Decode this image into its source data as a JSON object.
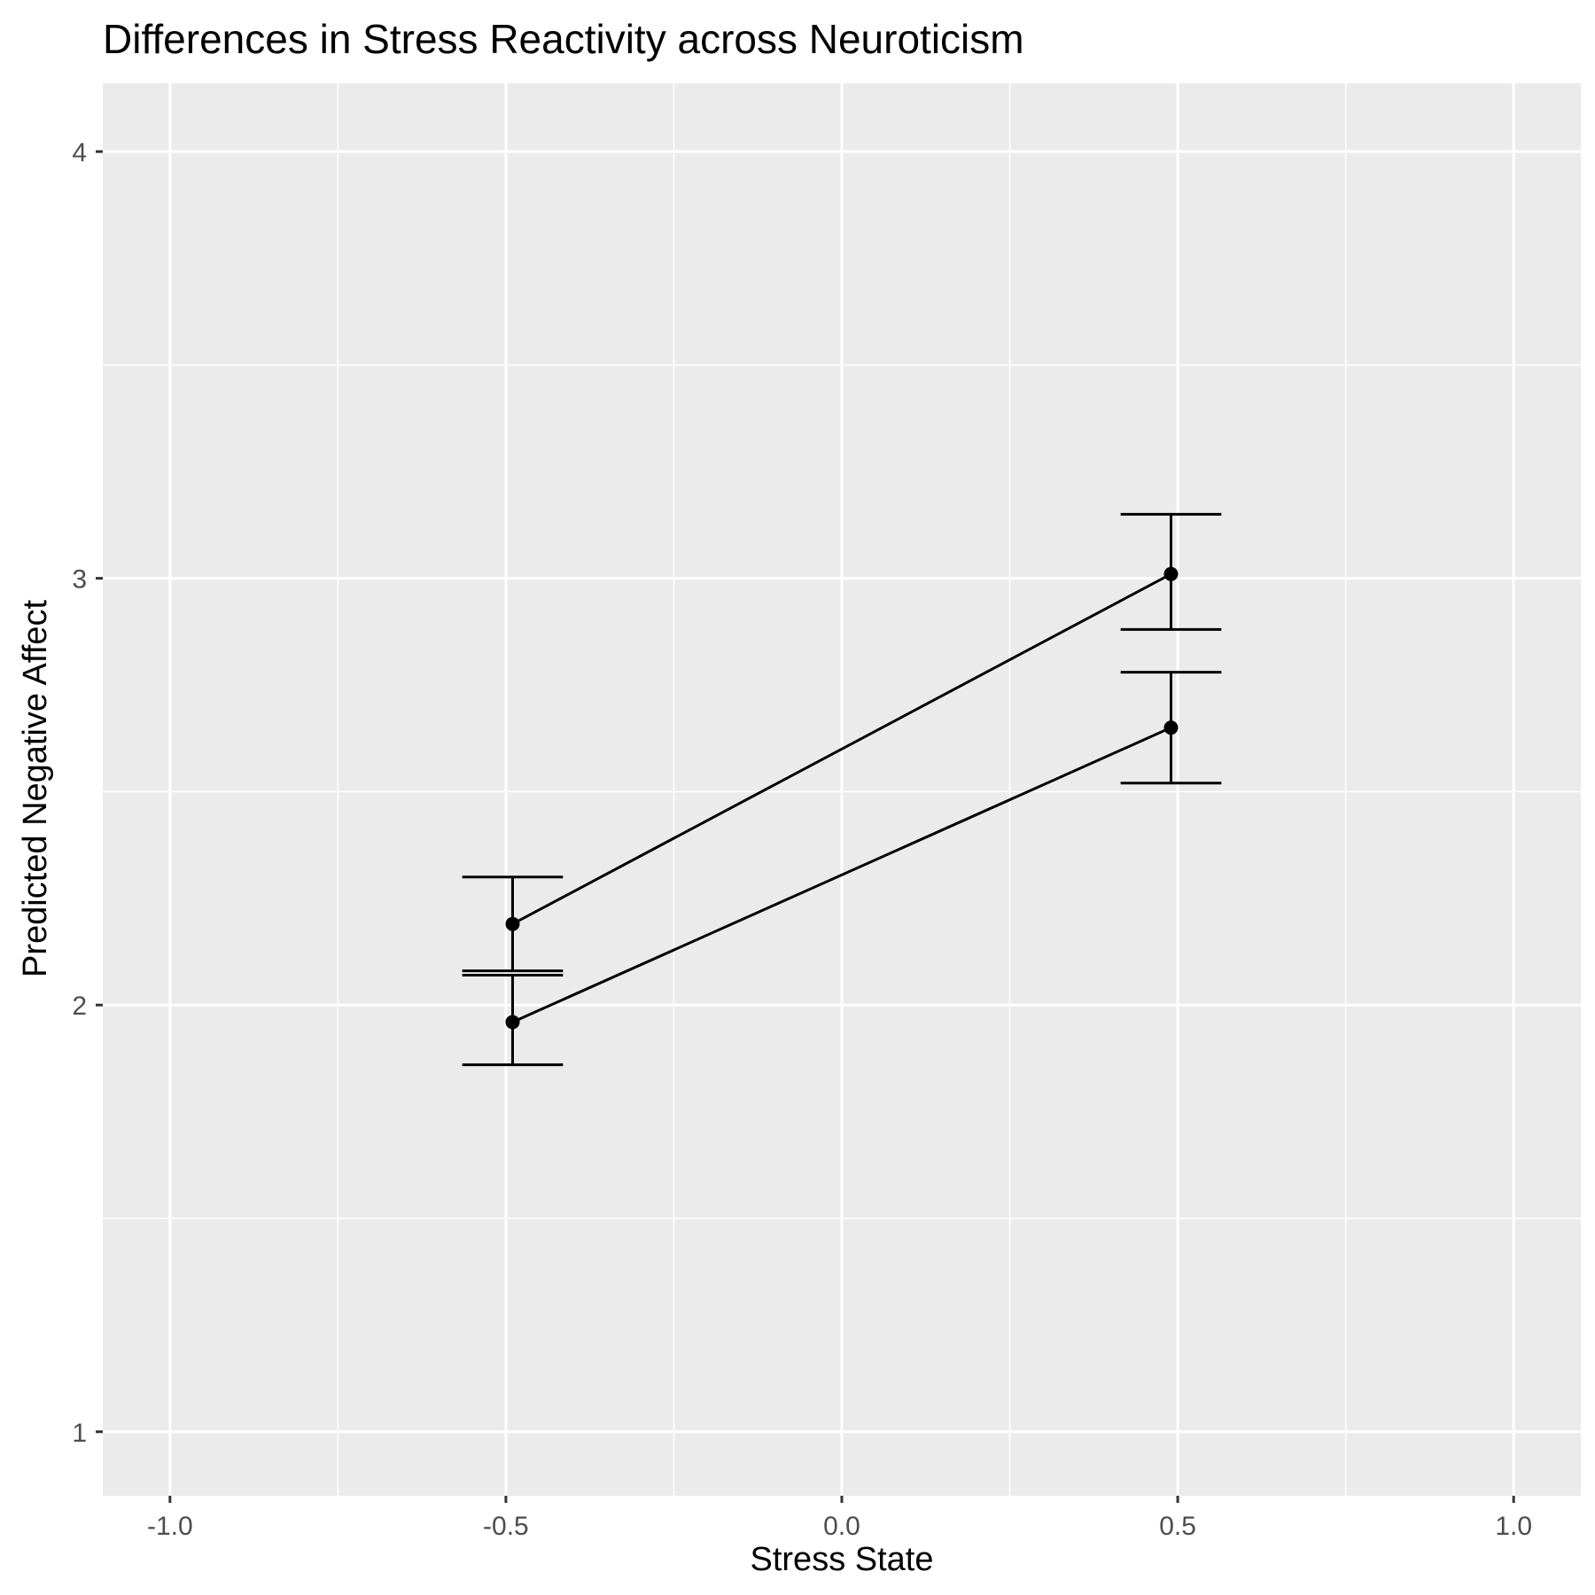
{
  "chart_data": {
    "type": "line",
    "title": "Differences in Stress Reactivity across Neuroticism",
    "xlabel": "Stress State",
    "ylabel": "Predicted Negative Affect",
    "xlim": [
      -1.1,
      1.1
    ],
    "ylim": [
      0.85,
      4.16
    ],
    "x_ticks": [
      -1.0,
      -0.5,
      0.0,
      0.5,
      1.0
    ],
    "x_tick_labels": [
      "-1.0",
      "-0.5",
      "0.0",
      "0.5",
      "1.0"
    ],
    "y_ticks": [
      1,
      2,
      3,
      4
    ],
    "y_tick_labels": [
      "1",
      "2",
      "3",
      "4"
    ],
    "grid": true,
    "background": "#ebebeb",
    "series": [
      {
        "x": [
          -0.49,
          0.49
        ],
        "values": [
          2.19,
          3.01
        ],
        "error_lower": [
          2.08,
          2.88
        ],
        "error_upper": [
          2.3,
          3.15
        ]
      },
      {
        "x": [
          -0.49,
          0.49
        ],
        "values": [
          1.96,
          2.65
        ],
        "error_lower": [
          1.86,
          2.52
        ],
        "error_upper": [
          2.07,
          2.78
        ]
      }
    ]
  }
}
